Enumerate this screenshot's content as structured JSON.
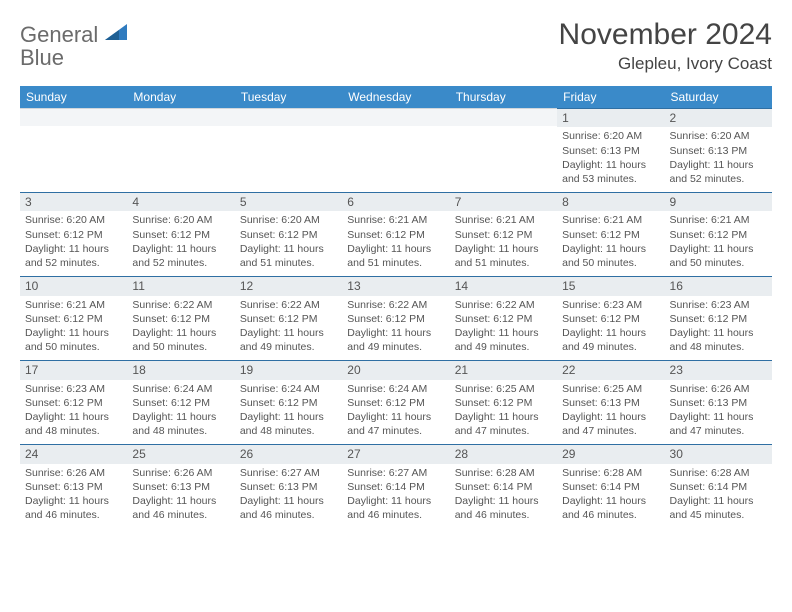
{
  "logo": {
    "line1": "General",
    "line2": "Blue"
  },
  "title": "November 2024",
  "location": "Glepleu, Ivory Coast",
  "colors": {
    "header_bg": "#3a8ac9",
    "header_text": "#ffffff",
    "dayhead_bg": "#e9edf0",
    "dayhead_border": "#2f6fa3",
    "body_text": "#555555",
    "logo_gray": "#6b6b6b",
    "logo_blue": "#2f7bbf"
  },
  "typography": {
    "month_title_size": 30,
    "location_size": 17,
    "weekday_size": 12,
    "daynum_size": 12,
    "body_size": 10.5
  },
  "weekdays": [
    "Sunday",
    "Monday",
    "Tuesday",
    "Wednesday",
    "Thursday",
    "Friday",
    "Saturday"
  ],
  "weeks": [
    [
      {
        "blank": true
      },
      {
        "blank": true
      },
      {
        "blank": true
      },
      {
        "blank": true
      },
      {
        "blank": true
      },
      {
        "n": "1",
        "sr": "6:20 AM",
        "ss": "6:13 PM",
        "dl": "11 hours and 53 minutes."
      },
      {
        "n": "2",
        "sr": "6:20 AM",
        "ss": "6:13 PM",
        "dl": "11 hours and 52 minutes."
      }
    ],
    [
      {
        "n": "3",
        "sr": "6:20 AM",
        "ss": "6:12 PM",
        "dl": "11 hours and 52 minutes."
      },
      {
        "n": "4",
        "sr": "6:20 AM",
        "ss": "6:12 PM",
        "dl": "11 hours and 52 minutes."
      },
      {
        "n": "5",
        "sr": "6:20 AM",
        "ss": "6:12 PM",
        "dl": "11 hours and 51 minutes."
      },
      {
        "n": "6",
        "sr": "6:21 AM",
        "ss": "6:12 PM",
        "dl": "11 hours and 51 minutes."
      },
      {
        "n": "7",
        "sr": "6:21 AM",
        "ss": "6:12 PM",
        "dl": "11 hours and 51 minutes."
      },
      {
        "n": "8",
        "sr": "6:21 AM",
        "ss": "6:12 PM",
        "dl": "11 hours and 50 minutes."
      },
      {
        "n": "9",
        "sr": "6:21 AM",
        "ss": "6:12 PM",
        "dl": "11 hours and 50 minutes."
      }
    ],
    [
      {
        "n": "10",
        "sr": "6:21 AM",
        "ss": "6:12 PM",
        "dl": "11 hours and 50 minutes."
      },
      {
        "n": "11",
        "sr": "6:22 AM",
        "ss": "6:12 PM",
        "dl": "11 hours and 50 minutes."
      },
      {
        "n": "12",
        "sr": "6:22 AM",
        "ss": "6:12 PM",
        "dl": "11 hours and 49 minutes."
      },
      {
        "n": "13",
        "sr": "6:22 AM",
        "ss": "6:12 PM",
        "dl": "11 hours and 49 minutes."
      },
      {
        "n": "14",
        "sr": "6:22 AM",
        "ss": "6:12 PM",
        "dl": "11 hours and 49 minutes."
      },
      {
        "n": "15",
        "sr": "6:23 AM",
        "ss": "6:12 PM",
        "dl": "11 hours and 49 minutes."
      },
      {
        "n": "16",
        "sr": "6:23 AM",
        "ss": "6:12 PM",
        "dl": "11 hours and 48 minutes."
      }
    ],
    [
      {
        "n": "17",
        "sr": "6:23 AM",
        "ss": "6:12 PM",
        "dl": "11 hours and 48 minutes."
      },
      {
        "n": "18",
        "sr": "6:24 AM",
        "ss": "6:12 PM",
        "dl": "11 hours and 48 minutes."
      },
      {
        "n": "19",
        "sr": "6:24 AM",
        "ss": "6:12 PM",
        "dl": "11 hours and 48 minutes."
      },
      {
        "n": "20",
        "sr": "6:24 AM",
        "ss": "6:12 PM",
        "dl": "11 hours and 47 minutes."
      },
      {
        "n": "21",
        "sr": "6:25 AM",
        "ss": "6:12 PM",
        "dl": "11 hours and 47 minutes."
      },
      {
        "n": "22",
        "sr": "6:25 AM",
        "ss": "6:13 PM",
        "dl": "11 hours and 47 minutes."
      },
      {
        "n": "23",
        "sr": "6:26 AM",
        "ss": "6:13 PM",
        "dl": "11 hours and 47 minutes."
      }
    ],
    [
      {
        "n": "24",
        "sr": "6:26 AM",
        "ss": "6:13 PM",
        "dl": "11 hours and 46 minutes."
      },
      {
        "n": "25",
        "sr": "6:26 AM",
        "ss": "6:13 PM",
        "dl": "11 hours and 46 minutes."
      },
      {
        "n": "26",
        "sr": "6:27 AM",
        "ss": "6:13 PM",
        "dl": "11 hours and 46 minutes."
      },
      {
        "n": "27",
        "sr": "6:27 AM",
        "ss": "6:14 PM",
        "dl": "11 hours and 46 minutes."
      },
      {
        "n": "28",
        "sr": "6:28 AM",
        "ss": "6:14 PM",
        "dl": "11 hours and 46 minutes."
      },
      {
        "n": "29",
        "sr": "6:28 AM",
        "ss": "6:14 PM",
        "dl": "11 hours and 46 minutes."
      },
      {
        "n": "30",
        "sr": "6:28 AM",
        "ss": "6:14 PM",
        "dl": "11 hours and 45 minutes."
      }
    ]
  ],
  "labels": {
    "sunrise": "Sunrise:",
    "sunset": "Sunset:",
    "daylight": "Daylight:"
  }
}
